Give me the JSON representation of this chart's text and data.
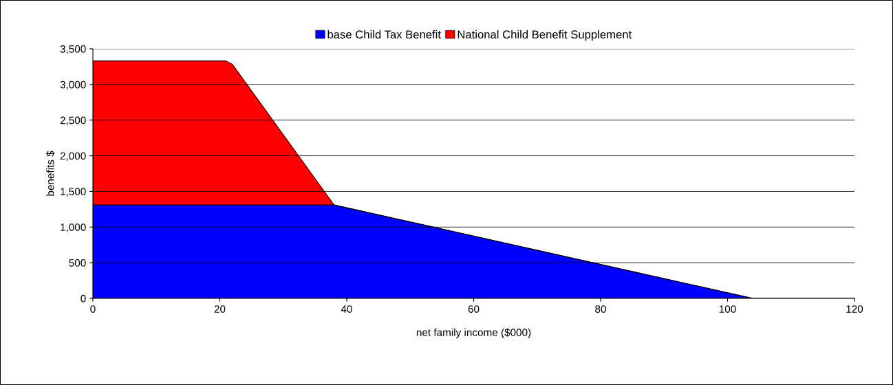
{
  "chart_data": {
    "type": "area",
    "stacked": true,
    "xlabel": "net family income ($000)",
    "ylabel": "benefits $",
    "x": [
      0,
      21,
      22,
      38,
      104,
      120
    ],
    "series": [
      {
        "name": "base Child Tax Benefit",
        "color": "#0000ff",
        "values": [
          1310,
          1310,
          1310,
          1310,
          0,
          0
        ]
      },
      {
        "name": "National Child Benefit Supplement",
        "color": "#ff0000",
        "values": [
          2020,
          2020,
          1970,
          0,
          0,
          0
        ]
      }
    ],
    "xlim": [
      0,
      120
    ],
    "xticks": [
      0,
      20,
      40,
      60,
      80,
      100,
      120
    ],
    "ylim": [
      0,
      3500
    ],
    "yticks": [
      {
        "value": 0,
        "label": "0"
      },
      {
        "value": 500,
        "label": "500"
      },
      {
        "value": 1000,
        "label": "1,000"
      },
      {
        "value": 1500,
        "label": "1,500"
      },
      {
        "value": 2000,
        "label": "2,000"
      },
      {
        "value": 2500,
        "label": "2,500"
      },
      {
        "value": 3000,
        "label": "3,000"
      },
      {
        "value": 3500,
        "label": "3,500"
      }
    ],
    "grid": "y",
    "legend": "top"
  }
}
